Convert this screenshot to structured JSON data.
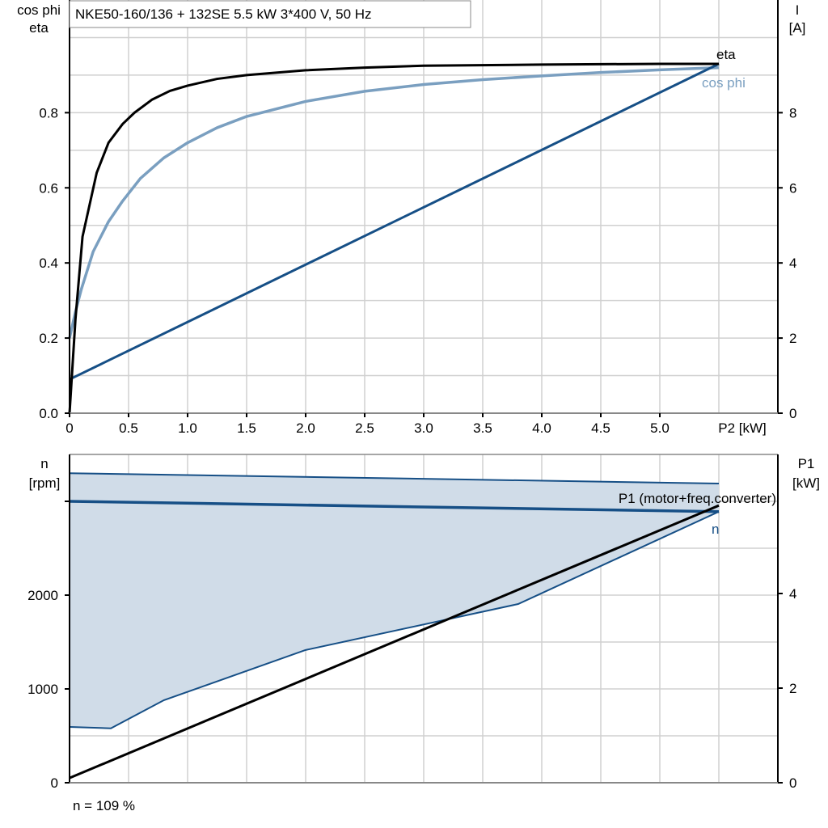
{
  "title": "NKE50-160/136 + 132SE   5.5 kW   3*400 V, 50 Hz",
  "footer_note": "n = 109 %",
  "colors": {
    "eta": "#000000",
    "cos_phi": "#7a9fc0",
    "current": "#164f86",
    "speed": "#164f86",
    "speed_band": "#d0dce8",
    "p1": "#000000",
    "grid": "#d0d0d0"
  },
  "chart_data": [
    {
      "type": "line",
      "xlabel": "P2 [kW]",
      "ylabel_left": [
        "cos phi",
        "eta"
      ],
      "ylabel_right": [
        "I",
        "[A]"
      ],
      "xlim": [
        0,
        6.0
      ],
      "ylim_left": [
        0,
        1.1
      ],
      "ylim_right": [
        0,
        11
      ],
      "xticks": [
        "0",
        "0.5",
        "1.0",
        "1.5",
        "2.0",
        "2.5",
        "3.0",
        "3.5",
        "4.0",
        "4.5",
        "5.0"
      ],
      "xtick_values": [
        0,
        0.5,
        1.0,
        1.5,
        2.0,
        2.5,
        3.0,
        3.5,
        4.0,
        4.5,
        5.0
      ],
      "yticks_left": [
        "0.0",
        "0.2",
        "0.4",
        "0.6",
        "0.8"
      ],
      "ytick_left_values": [
        0,
        0.2,
        0.4,
        0.6,
        0.8
      ],
      "yticks_right": [
        "0",
        "2",
        "4",
        "6",
        "8"
      ],
      "ytick_right_values": [
        0,
        2,
        4,
        6,
        8
      ],
      "grid": true,
      "series": [
        {
          "name": "eta",
          "axis": "left",
          "x": [
            0,
            0.05,
            0.11,
            0.23,
            0.33,
            0.45,
            0.55,
            0.7,
            0.85,
            1.0,
            1.25,
            1.5,
            2.0,
            2.5,
            3.0,
            4.0,
            5.0,
            5.5
          ],
          "y": [
            0,
            0.25,
            0.47,
            0.64,
            0.72,
            0.77,
            0.8,
            0.835,
            0.858,
            0.872,
            0.89,
            0.9,
            0.913,
            0.92,
            0.925,
            0.928,
            0.93,
            0.93
          ]
        },
        {
          "name": "cos phi",
          "axis": "left",
          "x": [
            0,
            0.05,
            0.1,
            0.2,
            0.33,
            0.45,
            0.6,
            0.8,
            1.0,
            1.25,
            1.5,
            2.0,
            2.5,
            3.0,
            3.5,
            4.0,
            4.5,
            5.0,
            5.5
          ],
          "y": [
            0.2,
            0.27,
            0.33,
            0.43,
            0.51,
            0.565,
            0.625,
            0.68,
            0.72,
            0.76,
            0.79,
            0.83,
            0.857,
            0.875,
            0.888,
            0.898,
            0.907,
            0.914,
            0.92
          ]
        },
        {
          "name": "I",
          "axis": "right",
          "x": [
            0,
            5.5
          ],
          "y": [
            0.9,
            9.3
          ]
        }
      ]
    },
    {
      "type": "line",
      "xlim": [
        0,
        6.0
      ],
      "ylabel_left": [
        "n",
        "[rpm]"
      ],
      "ylabel_right": [
        "P1",
        "[kW]"
      ],
      "ylim_left": [
        0,
        3500
      ],
      "ylim_right": [
        0,
        7
      ],
      "yticks_left": [
        "0",
        "1000",
        "2000",
        ""
      ],
      "ytick_left_values": [
        0,
        1000,
        2000,
        3000
      ],
      "yticks_right": [
        "0",
        "2",
        "4"
      ],
      "ytick_right_values": [
        0,
        2,
        4
      ],
      "grid": true,
      "band": {
        "upper_x": [
          0,
          5.5
        ],
        "upper_y": [
          3300,
          3190
        ],
        "lower_x": [
          0,
          0.35,
          0.8,
          2.0,
          3.8,
          5.5
        ],
        "lower_y": [
          595,
          580,
          880,
          1415,
          1905,
          2890
        ]
      },
      "series": [
        {
          "name": "n",
          "axis": "left",
          "x": [
            0,
            5.5
          ],
          "y": [
            3000,
            2890
          ]
        },
        {
          "name": "P1 (motor+freq.converter)",
          "axis": "right",
          "x": [
            0,
            5.5
          ],
          "y": [
            0.1,
            5.86
          ]
        }
      ]
    }
  ]
}
